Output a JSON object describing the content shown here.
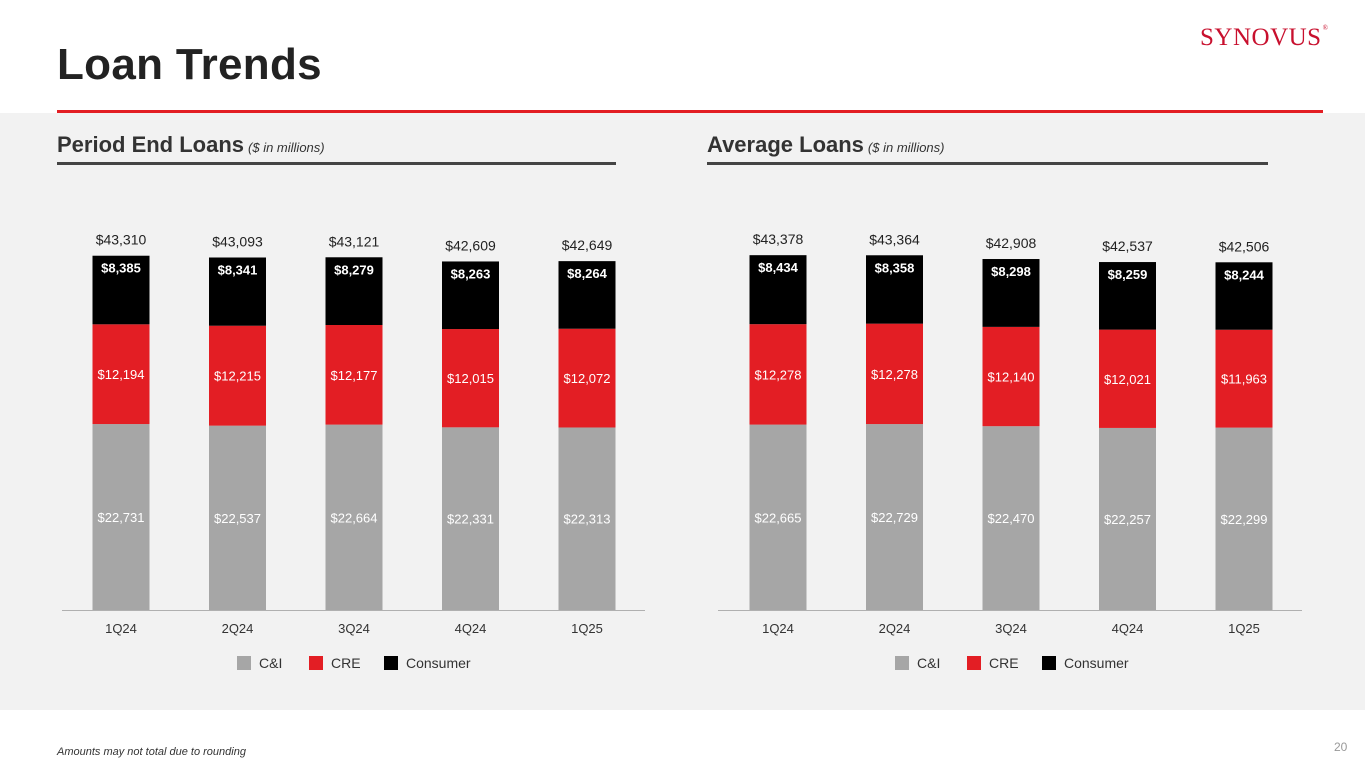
{
  "page": {
    "title": "Loan Trends",
    "logo": "Synovus",
    "footnote": "Amounts may not total due to rounding",
    "page_number": "20"
  },
  "colors": {
    "cni": "#a6a6a6",
    "cre": "#e31e24",
    "consumer": "#000000",
    "accent_rule": "#e31e24"
  },
  "chart_data": [
    {
      "type": "bar",
      "stacked": true,
      "title": "Period End Loans",
      "subtitle": "($ in millions)",
      "categories": [
        "1Q24",
        "2Q24",
        "3Q24",
        "4Q24",
        "1Q25"
      ],
      "series": [
        {
          "name": "C&I",
          "values": [
            22731,
            22537,
            22664,
            22331,
            22313
          ],
          "labels": [
            "$22,731",
            "$22,537",
            "$22,664",
            "$22,331",
            "$22,313"
          ]
        },
        {
          "name": "CRE",
          "values": [
            12194,
            12215,
            12177,
            12015,
            12072
          ],
          "labels": [
            "$12,194",
            "$12,215",
            "$12,177",
            "$12,015",
            "$12,072"
          ]
        },
        {
          "name": "Consumer",
          "values": [
            8385,
            8341,
            8279,
            8263,
            8264
          ],
          "labels": [
            "$8,385",
            "$8,341",
            "$8,279",
            "$8,263",
            "$8,264"
          ]
        }
      ],
      "totals": [
        43310,
        43093,
        43121,
        42609,
        42649
      ],
      "total_labels": [
        "$43,310",
        "$43,093",
        "$43,121",
        "$42,609",
        "$42,649"
      ],
      "legend": [
        "C&I",
        "CRE",
        "Consumer"
      ],
      "ylim": [
        0,
        46000
      ],
      "legend_position": "bottom"
    },
    {
      "type": "bar",
      "stacked": true,
      "title": "Average Loans",
      "subtitle": "($ in millions)",
      "categories": [
        "1Q24",
        "2Q24",
        "3Q24",
        "4Q24",
        "1Q25"
      ],
      "series": [
        {
          "name": "C&I",
          "values": [
            22665,
            22729,
            22470,
            22257,
            22299
          ],
          "labels": [
            "$22,665",
            "$22,729",
            "$22,470",
            "$22,257",
            "$22,299"
          ]
        },
        {
          "name": "CRE",
          "values": [
            12278,
            12278,
            12140,
            12021,
            11963
          ],
          "labels": [
            "$12,278",
            "$12,278",
            "$12,140",
            "$12,021",
            "$11,963"
          ]
        },
        {
          "name": "Consumer",
          "values": [
            8434,
            8358,
            8298,
            8259,
            8244
          ],
          "labels": [
            "$8,434",
            "$8,358",
            "$8,298",
            "$8,259",
            "$8,244"
          ]
        }
      ],
      "totals": [
        43378,
        43364,
        42908,
        42537,
        42506
      ],
      "total_labels": [
        "$43,378",
        "$43,364",
        "$42,908",
        "$42,537",
        "$42,506"
      ],
      "legend": [
        "C&I",
        "CRE",
        "Consumer"
      ],
      "ylim": [
        0,
        46000
      ],
      "legend_position": "bottom"
    }
  ]
}
